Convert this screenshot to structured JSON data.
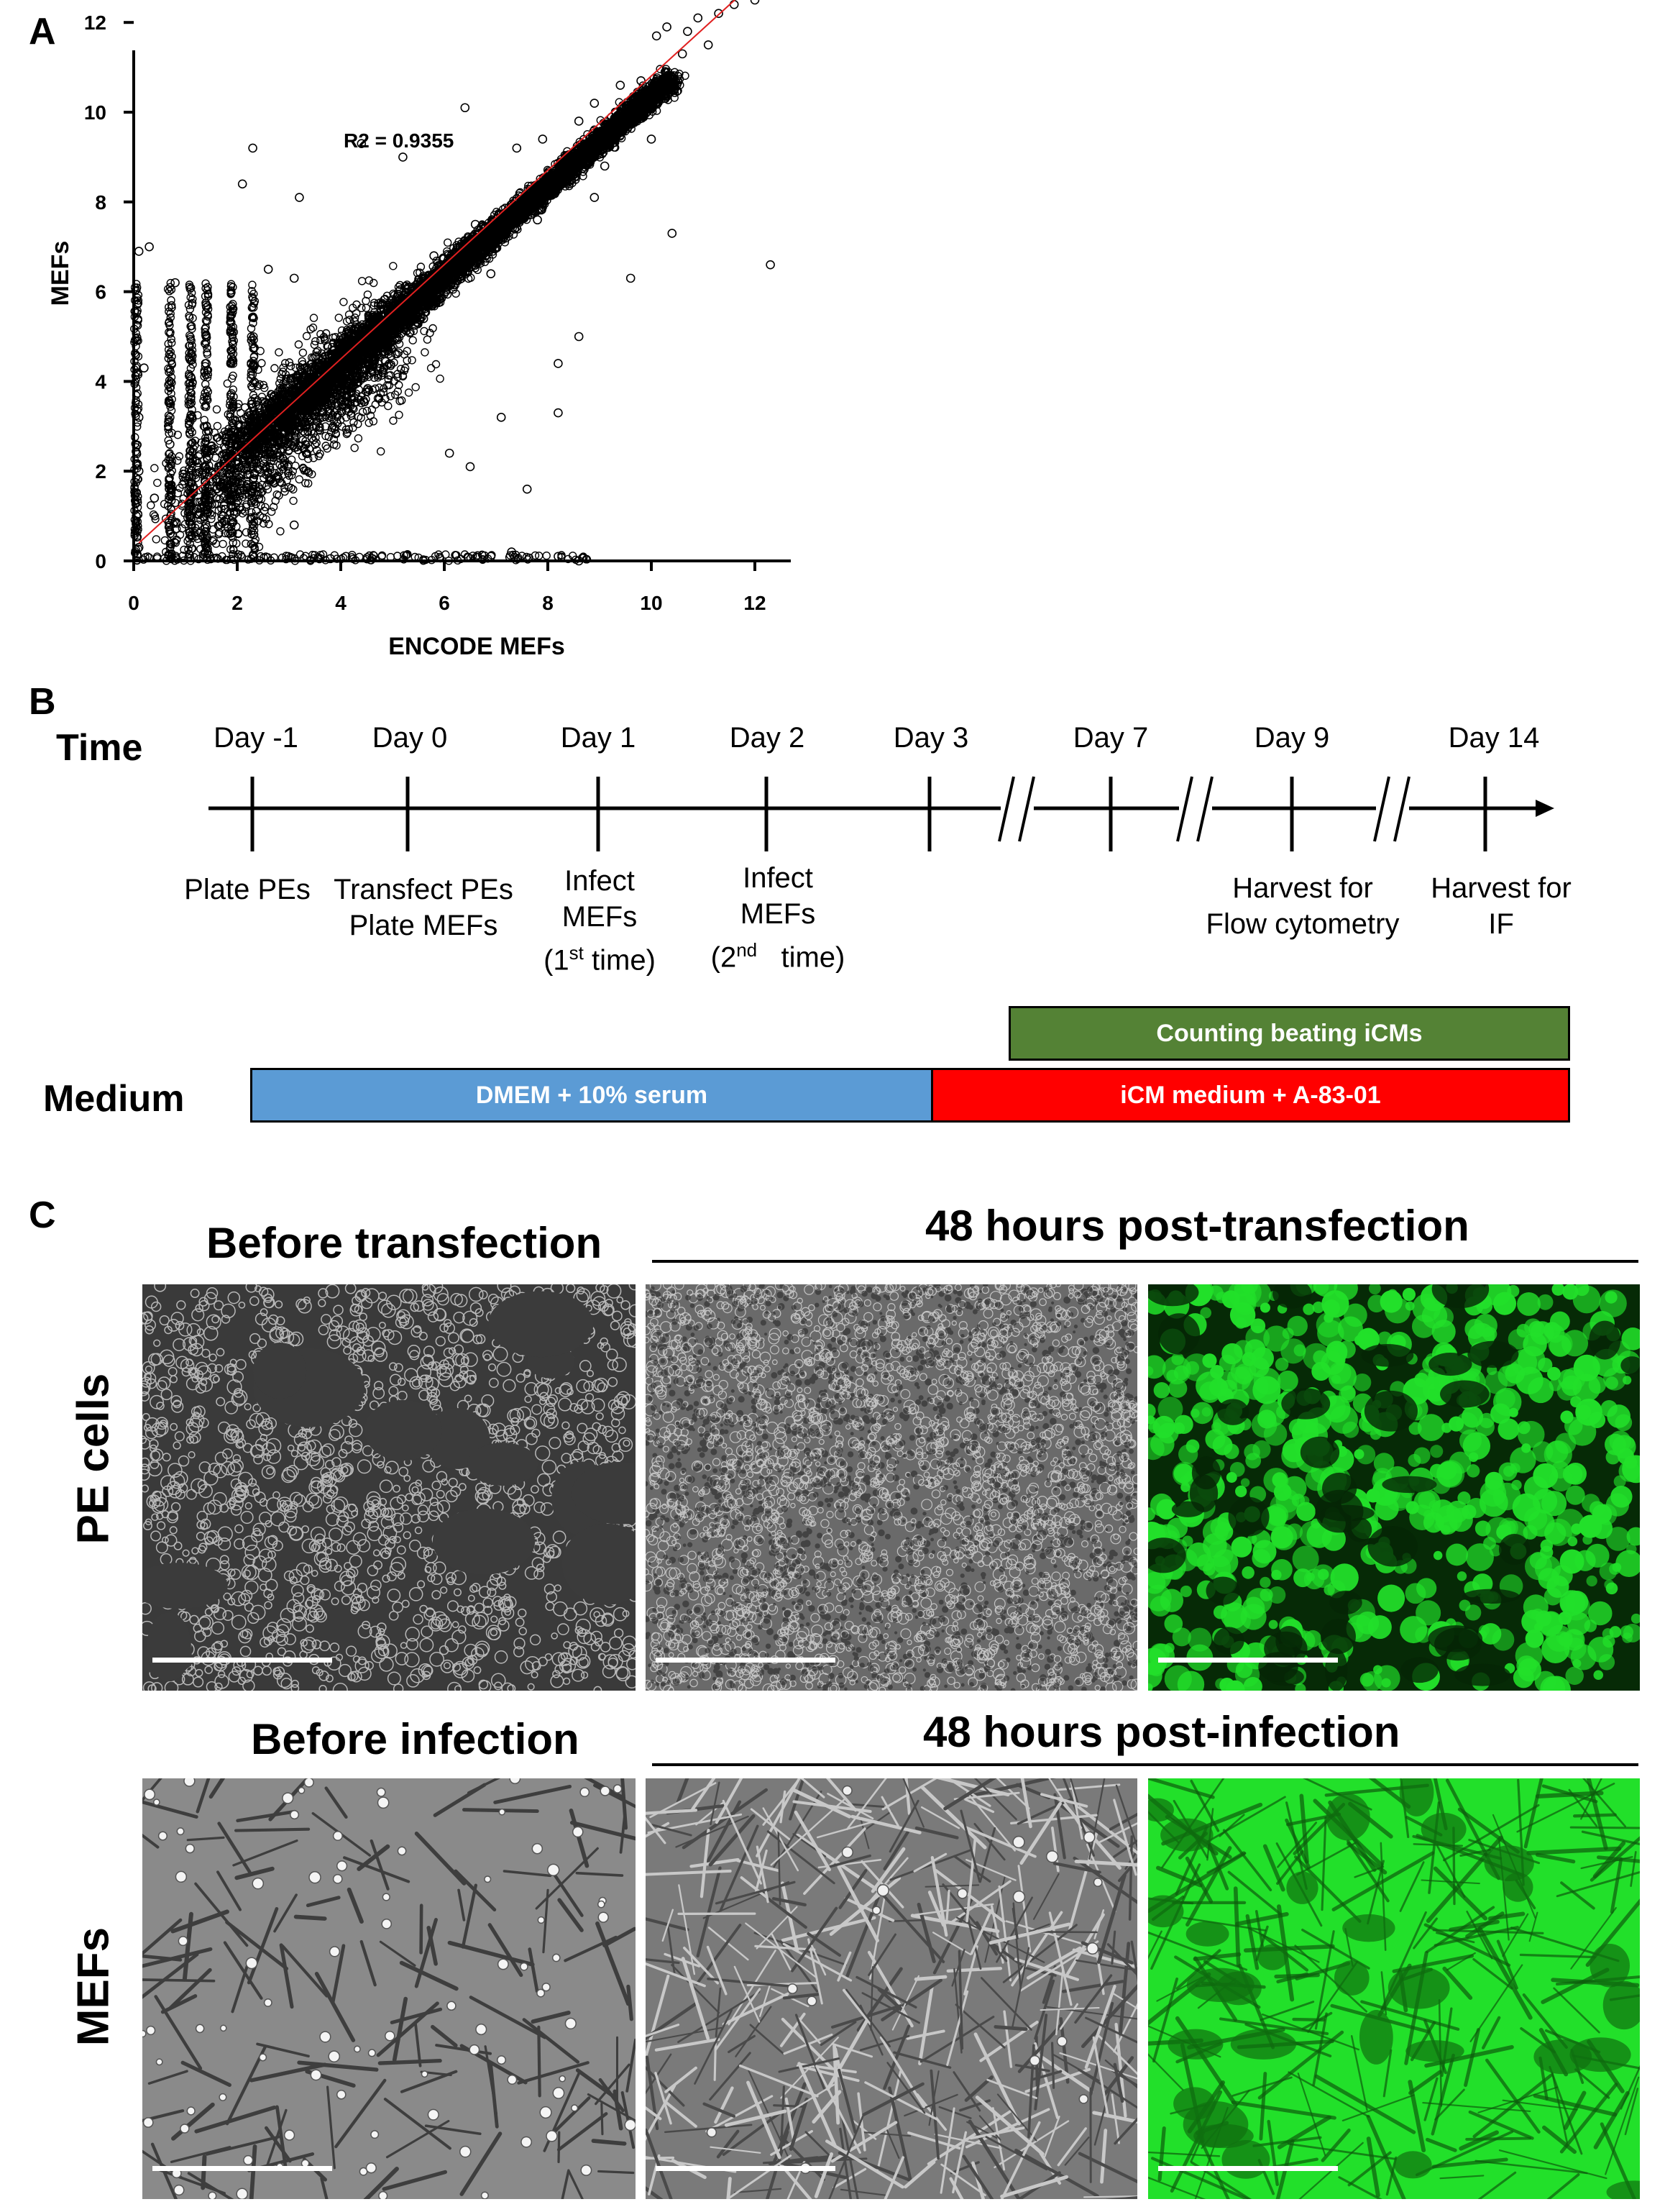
{
  "panels": {
    "a": {
      "label": "A"
    },
    "b": {
      "label": "B"
    },
    "c": {
      "label": "C"
    }
  },
  "chart_data": {
    "type": "scatter",
    "xlabel": "ENCODE MEFs",
    "ylabel": "MEFs",
    "xlim": [
      0,
      12.5
    ],
    "ylim": [
      0,
      12.5
    ],
    "x_ticks": [
      0,
      2,
      4,
      6,
      8,
      10,
      12
    ],
    "y_ticks": [
      0,
      2,
      4,
      6,
      8,
      10,
      12
    ],
    "annotation": "R2 = 0.9355",
    "r2": 0.9355,
    "fit_line": {
      "x": [
        0.1,
        11.8
      ],
      "y": [
        0.4,
        12.7
      ],
      "color": "#e02020"
    },
    "point_style": "open black circles",
    "points": [
      [
        12.2,
        12.6
      ],
      [
        12.0,
        12.5
      ],
      [
        11.6,
        12.4
      ],
      [
        11.3,
        12.2
      ],
      [
        10.9,
        12.1
      ],
      [
        10.7,
        11.8
      ],
      [
        11.1,
        11.5
      ],
      [
        10.3,
        11.9
      ],
      [
        10.1,
        11.7
      ],
      [
        10.6,
        11.3
      ],
      [
        12.3,
        6.6
      ],
      [
        9.2,
        9.3
      ],
      [
        8.6,
        9.8
      ],
      [
        9.8,
        10.7
      ],
      [
        9.4,
        10.6
      ],
      [
        8.9,
        10.2
      ],
      [
        7.9,
        9.4
      ],
      [
        7.4,
        9.2
      ],
      [
        2.3,
        9.2
      ],
      [
        2.1,
        8.4
      ],
      [
        3.2,
        8.1
      ],
      [
        5.2,
        9.0
      ],
      [
        4.4,
        9.3
      ],
      [
        6.4,
        10.1
      ],
      [
        0.1,
        6.9
      ],
      [
        0.3,
        7.0
      ],
      [
        0.8,
        6.2
      ],
      [
        1.4,
        5.7
      ],
      [
        2.6,
        6.5
      ],
      [
        3.1,
        6.3
      ],
      [
        0.7,
        3.2
      ],
      [
        0.7,
        2.6
      ],
      [
        1.1,
        4.1
      ],
      [
        1.1,
        3.6
      ],
      [
        1.4,
        5.0
      ],
      [
        1.4,
        4.4
      ],
      [
        0.2,
        4.3
      ],
      [
        0.1,
        3.2
      ],
      [
        0.1,
        2.0
      ],
      [
        0.05,
        1.0
      ],
      [
        0.1,
        0.3
      ],
      [
        0.4,
        1.4
      ],
      [
        2.2,
        1.7
      ],
      [
        3.1,
        0.8
      ],
      [
        3.8,
        0.05
      ],
      [
        4.1,
        0.1
      ],
      [
        6.9,
        0.1
      ],
      [
        7.3,
        0.2
      ],
      [
        8.2,
        0.1
      ],
      [
        8.6,
        0.0
      ],
      [
        7.6,
        1.6
      ],
      [
        6.5,
        2.1
      ],
      [
        6.1,
        2.4
      ],
      [
        7.1,
        3.2
      ],
      [
        8.2,
        3.3
      ],
      [
        8.2,
        4.4
      ],
      [
        8.6,
        5.0
      ],
      [
        9.6,
        6.3
      ],
      [
        10.4,
        7.3
      ],
      [
        10.0,
        9.4
      ],
      [
        8.9,
        8.1
      ],
      [
        6.6,
        7.5
      ],
      [
        5.8,
        6.8
      ],
      [
        5.1,
        5.9
      ],
      [
        4.6,
        5.2
      ],
      [
        4.1,
        4.3
      ],
      [
        3.5,
        3.7
      ],
      [
        3.0,
        3.1
      ],
      [
        2.5,
        2.7
      ],
      [
        1.9,
        2.3
      ],
      [
        1.6,
        1.6
      ],
      [
        6.9,
        6.4
      ],
      [
        7.8,
        7.6
      ],
      [
        8.4,
        9.0
      ],
      [
        9.1,
        8.8
      ],
      [
        5.6,
        5.4
      ],
      [
        4.8,
        4.2
      ],
      [
        3.9,
        3.5
      ]
    ]
  },
  "timeline": {
    "row_label": "Time",
    "days": [
      {
        "day": "Day -1",
        "event": [
          "Plate PEs"
        ]
      },
      {
        "day": "Day 0",
        "event": [
          "Transfect PEs",
          "Plate MEFs"
        ]
      },
      {
        "day": "Day 1",
        "event": [
          "Infect",
          "MEFs"
        ],
        "ordinal": {
          "pre": "(1",
          "sup": "st",
          "post": " time)"
        }
      },
      {
        "day": "Day 2",
        "event": [
          "Infect",
          "MEFs"
        ],
        "ordinal": {
          "pre": "(2",
          "sup": "nd",
          "post": "   time)"
        }
      },
      {
        "day": "Day 3",
        "event": []
      },
      {
        "day": "Day 7",
        "event": []
      },
      {
        "day": "Day 9",
        "event": [
          "Harvest for",
          "Flow cytometry"
        ]
      },
      {
        "day": "Day 14",
        "event": [
          "Harvest for",
          "IF"
        ]
      }
    ],
    "medium_label": "Medium",
    "bars": {
      "counting": {
        "label": "Counting beating iCMs",
        "color": "#548235"
      },
      "dmem": {
        "label": "DMEM + 10% serum",
        "color": "#5b9bd5"
      },
      "icm": {
        "label": "iCM medium + A-83-01",
        "color": "#ff0000"
      }
    }
  },
  "micrographs": {
    "row1": {
      "row_label": "PE cells",
      "before_title": "Before transfection",
      "after_title": "48 hours post-transfection"
    },
    "row2": {
      "row_label": "MEFs",
      "before_title": "Before infection",
      "after_title": "48 hours post-infection"
    },
    "fluorescence_color": "#22e02a"
  }
}
